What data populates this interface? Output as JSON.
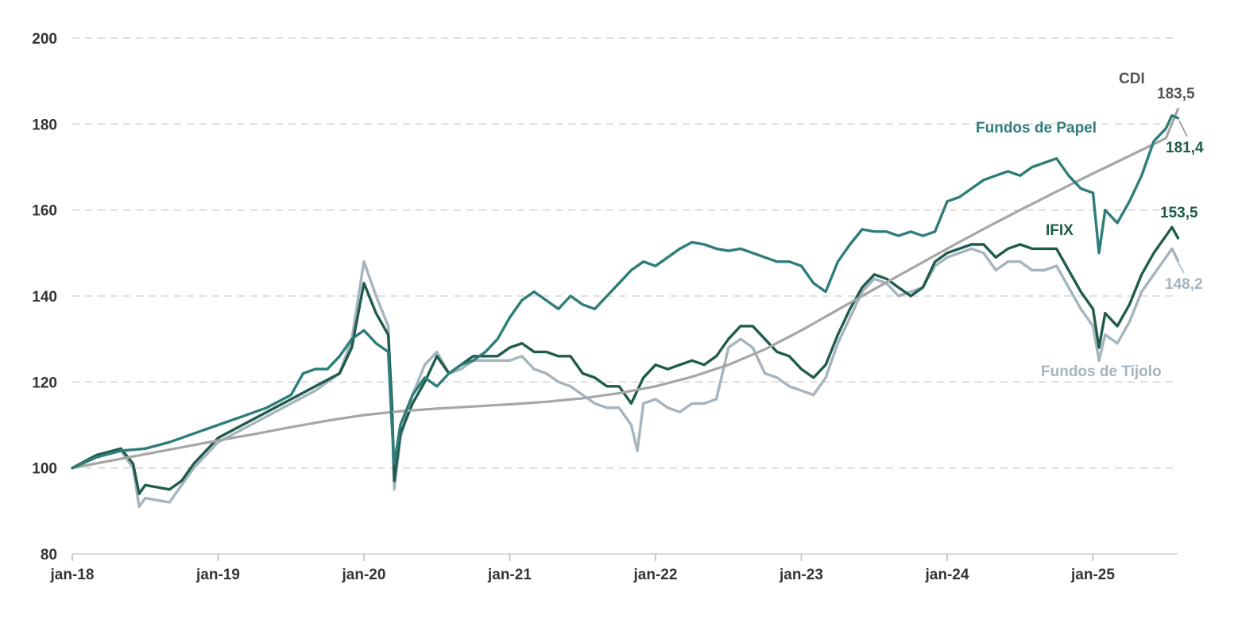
{
  "chart_data": {
    "type": "line",
    "title": "",
    "xlabel": "",
    "ylabel": "",
    "ylim": [
      80,
      200
    ],
    "y_ticks": [
      80,
      100,
      120,
      140,
      160,
      180,
      200
    ],
    "x_ticks": [
      "jan-18",
      "jan-19",
      "jan-20",
      "jan-21",
      "jan-22",
      "jan-23",
      "jan-24",
      "jan-25"
    ],
    "grid": "horizontal dashed",
    "legend": "inline labels at line ends",
    "x_unit": "months since jan-18",
    "series": [
      {
        "name": "CDI",
        "color": "#a6a6a6",
        "end_value": "183,5",
        "points": [
          [
            0,
            100
          ],
          [
            3,
            101.6
          ],
          [
            6,
            103.2
          ],
          [
            9,
            104.8
          ],
          [
            12,
            106.4
          ],
          [
            15,
            107.9
          ],
          [
            18,
            109.5
          ],
          [
            21,
            111
          ],
          [
            24,
            112.3
          ],
          [
            27,
            113.2
          ],
          [
            30,
            113.8
          ],
          [
            33,
            114.3
          ],
          [
            36,
            114.8
          ],
          [
            39,
            115.4
          ],
          [
            42,
            116.2
          ],
          [
            45,
            117.4
          ],
          [
            48,
            119
          ],
          [
            51,
            121.2
          ],
          [
            54,
            124
          ],
          [
            57,
            127.6
          ],
          [
            60,
            132
          ],
          [
            63,
            136.8
          ],
          [
            66,
            141.6
          ],
          [
            69,
            146.3
          ],
          [
            72,
            151
          ],
          [
            75,
            155.6
          ],
          [
            78,
            160
          ],
          [
            81,
            164.3
          ],
          [
            84,
            168.5
          ],
          [
            87,
            172.6
          ],
          [
            90,
            176.7
          ],
          [
            91,
            183.5
          ]
        ]
      },
      {
        "name": "Fundos de Papel",
        "color": "#2e7d7b",
        "end_value": "181,4",
        "points": [
          [
            0,
            100
          ],
          [
            2,
            102.5
          ],
          [
            4,
            104
          ],
          [
            6,
            104.5
          ],
          [
            8,
            106
          ],
          [
            10,
            108
          ],
          [
            12,
            110
          ],
          [
            14,
            112
          ],
          [
            16,
            114
          ],
          [
            18,
            117
          ],
          [
            19,
            122
          ],
          [
            20,
            123
          ],
          [
            21,
            123
          ],
          [
            22,
            126
          ],
          [
            23,
            130
          ],
          [
            24,
            132
          ],
          [
            25,
            129
          ],
          [
            26,
            127
          ],
          [
            26.3,
            110
          ],
          [
            26.5,
            101
          ],
          [
            27,
            110
          ],
          [
            28,
            117
          ],
          [
            29,
            121
          ],
          [
            30,
            119
          ],
          [
            31,
            122
          ],
          [
            32,
            124
          ],
          [
            33,
            125
          ],
          [
            34,
            127
          ],
          [
            35,
            130
          ],
          [
            36,
            135
          ],
          [
            37,
            139
          ],
          [
            38,
            141
          ],
          [
            39,
            139
          ],
          [
            40,
            137
          ],
          [
            41,
            140
          ],
          [
            42,
            138
          ],
          [
            43,
            137
          ],
          [
            44,
            140
          ],
          [
            45,
            143
          ],
          [
            46,
            146
          ],
          [
            47,
            148
          ],
          [
            48,
            147
          ],
          [
            49,
            149
          ],
          [
            50,
            151
          ],
          [
            51,
            152.5
          ],
          [
            52,
            152
          ],
          [
            53,
            151
          ],
          [
            54,
            150.5
          ],
          [
            55,
            151
          ],
          [
            56,
            150
          ],
          [
            57,
            149
          ],
          [
            58,
            148
          ],
          [
            59,
            148
          ],
          [
            60,
            147
          ],
          [
            61,
            143
          ],
          [
            62,
            141
          ],
          [
            63,
            148
          ],
          [
            64,
            152
          ],
          [
            65,
            155.5
          ],
          [
            66,
            155
          ],
          [
            67,
            155
          ],
          [
            68,
            154
          ],
          [
            69,
            155
          ],
          [
            70,
            154
          ],
          [
            71,
            155
          ],
          [
            72,
            162
          ],
          [
            73,
            163
          ],
          [
            74,
            165
          ],
          [
            75,
            167
          ],
          [
            76,
            168
          ],
          [
            77,
            169
          ],
          [
            78,
            168
          ],
          [
            79,
            170
          ],
          [
            80,
            171
          ],
          [
            81,
            172
          ],
          [
            82,
            168
          ],
          [
            83,
            165
          ],
          [
            84,
            164
          ],
          [
            84.5,
            150
          ],
          [
            85,
            160
          ],
          [
            86,
            157
          ],
          [
            87,
            162
          ],
          [
            88,
            168
          ],
          [
            89,
            176
          ],
          [
            90,
            179
          ],
          [
            90.5,
            182
          ],
          [
            91,
            181.4
          ]
        ]
      },
      {
        "name": "IFIX",
        "color": "#1f5c4b",
        "end_value": "153,5",
        "points": [
          [
            0,
            100
          ],
          [
            2,
            103
          ],
          [
            4,
            104.5
          ],
          [
            5,
            101
          ],
          [
            5.5,
            94
          ],
          [
            6,
            96
          ],
          [
            7,
            95.5
          ],
          [
            8,
            95
          ],
          [
            9,
            97
          ],
          [
            10,
            101
          ],
          [
            11,
            104
          ],
          [
            12,
            107
          ],
          [
            14,
            110
          ],
          [
            16,
            113
          ],
          [
            18,
            116
          ],
          [
            20,
            119
          ],
          [
            22,
            122
          ],
          [
            23,
            128
          ],
          [
            24,
            143
          ],
          [
            25,
            136
          ],
          [
            26,
            131
          ],
          [
            26.3,
            115
          ],
          [
            26.5,
            97
          ],
          [
            27,
            108
          ],
          [
            28,
            115
          ],
          [
            29,
            120
          ],
          [
            30,
            126
          ],
          [
            31,
            122
          ],
          [
            32,
            124
          ],
          [
            33,
            126
          ],
          [
            34,
            126
          ],
          [
            35,
            126
          ],
          [
            36,
            128
          ],
          [
            37,
            129
          ],
          [
            38,
            127
          ],
          [
            39,
            127
          ],
          [
            40,
            126
          ],
          [
            41,
            126
          ],
          [
            42,
            122
          ],
          [
            43,
            121
          ],
          [
            44,
            119
          ],
          [
            45,
            119
          ],
          [
            46,
            115
          ],
          [
            47,
            121
          ],
          [
            48,
            124
          ],
          [
            49,
            123
          ],
          [
            50,
            124
          ],
          [
            51,
            125
          ],
          [
            52,
            124
          ],
          [
            53,
            126
          ],
          [
            54,
            130
          ],
          [
            55,
            133
          ],
          [
            56,
            133
          ],
          [
            57,
            130
          ],
          [
            58,
            127
          ],
          [
            59,
            126
          ],
          [
            60,
            123
          ],
          [
            61,
            121
          ],
          [
            62,
            124
          ],
          [
            63,
            131
          ],
          [
            64,
            137
          ],
          [
            65,
            142
          ],
          [
            66,
            145
          ],
          [
            67,
            144
          ],
          [
            68,
            142
          ],
          [
            69,
            140
          ],
          [
            70,
            142
          ],
          [
            71,
            148
          ],
          [
            72,
            150
          ],
          [
            73,
            151
          ],
          [
            74,
            152
          ],
          [
            75,
            152
          ],
          [
            76,
            149
          ],
          [
            77,
            151
          ],
          [
            78,
            152
          ],
          [
            79,
            151
          ],
          [
            80,
            151
          ],
          [
            81,
            151
          ],
          [
            82,
            146
          ],
          [
            83,
            141
          ],
          [
            84,
            137
          ],
          [
            84.5,
            128
          ],
          [
            85,
            136
          ],
          [
            86,
            133
          ],
          [
            87,
            138
          ],
          [
            88,
            145
          ],
          [
            89,
            150
          ],
          [
            90,
            154
          ],
          [
            90.5,
            156
          ],
          [
            91,
            153.5
          ]
        ]
      },
      {
        "name": "Fundos de Tijolo",
        "color": "#a5b4bf",
        "end_value": "148,2",
        "points": [
          [
            0,
            100
          ],
          [
            2,
            102.5
          ],
          [
            4,
            104
          ],
          [
            5,
            100
          ],
          [
            5.5,
            91
          ],
          [
            6,
            93
          ],
          [
            7,
            92.5
          ],
          [
            8,
            92
          ],
          [
            9,
            96
          ],
          [
            10,
            100
          ],
          [
            11,
            103
          ],
          [
            12,
            106
          ],
          [
            14,
            109
          ],
          [
            16,
            112
          ],
          [
            18,
            115
          ],
          [
            20,
            118
          ],
          [
            22,
            122
          ],
          [
            23,
            130
          ],
          [
            24,
            148
          ],
          [
            25,
            140
          ],
          [
            26,
            133
          ],
          [
            26.3,
            112
          ],
          [
            26.5,
            95
          ],
          [
            27,
            107
          ],
          [
            28,
            117
          ],
          [
            29,
            124
          ],
          [
            30,
            127
          ],
          [
            31,
            122
          ],
          [
            32,
            123
          ],
          [
            33,
            125
          ],
          [
            34,
            125
          ],
          [
            35,
            125
          ],
          [
            36,
            125
          ],
          [
            37,
            126
          ],
          [
            38,
            123
          ],
          [
            39,
            122
          ],
          [
            40,
            120
          ],
          [
            41,
            119
          ],
          [
            42,
            117
          ],
          [
            43,
            115
          ],
          [
            44,
            114
          ],
          [
            45,
            114
          ],
          [
            46,
            110
          ],
          [
            46.5,
            104
          ],
          [
            47,
            115
          ],
          [
            48,
            116
          ],
          [
            49,
            114
          ],
          [
            50,
            113
          ],
          [
            51,
            115
          ],
          [
            52,
            115
          ],
          [
            53,
            116
          ],
          [
            54,
            128
          ],
          [
            55,
            130
          ],
          [
            56,
            128
          ],
          [
            57,
            122
          ],
          [
            58,
            121
          ],
          [
            59,
            119
          ],
          [
            60,
            118
          ],
          [
            61,
            117
          ],
          [
            62,
            121
          ],
          [
            63,
            129
          ],
          [
            64,
            135
          ],
          [
            65,
            141
          ],
          [
            66,
            144
          ],
          [
            67,
            143
          ],
          [
            68,
            140
          ],
          [
            69,
            141
          ],
          [
            70,
            142
          ],
          [
            71,
            147
          ],
          [
            72,
            149
          ],
          [
            73,
            150
          ],
          [
            74,
            151
          ],
          [
            75,
            150
          ],
          [
            76,
            146
          ],
          [
            77,
            148
          ],
          [
            78,
            148
          ],
          [
            79,
            146
          ],
          [
            80,
            146
          ],
          [
            81,
            147
          ],
          [
            82,
            142
          ],
          [
            83,
            137
          ],
          [
            84,
            133
          ],
          [
            84.5,
            125
          ],
          [
            85,
            131
          ],
          [
            86,
            129
          ],
          [
            87,
            134
          ],
          [
            88,
            141
          ],
          [
            89,
            145
          ],
          [
            90,
            149
          ],
          [
            90.5,
            151
          ],
          [
            91,
            148.2
          ]
        ]
      }
    ]
  },
  "labels": {
    "cdi": "CDI",
    "papel": "Fundos de Papel",
    "ifix": "IFIX",
    "tijolo": "Fundos de Tijolo"
  }
}
